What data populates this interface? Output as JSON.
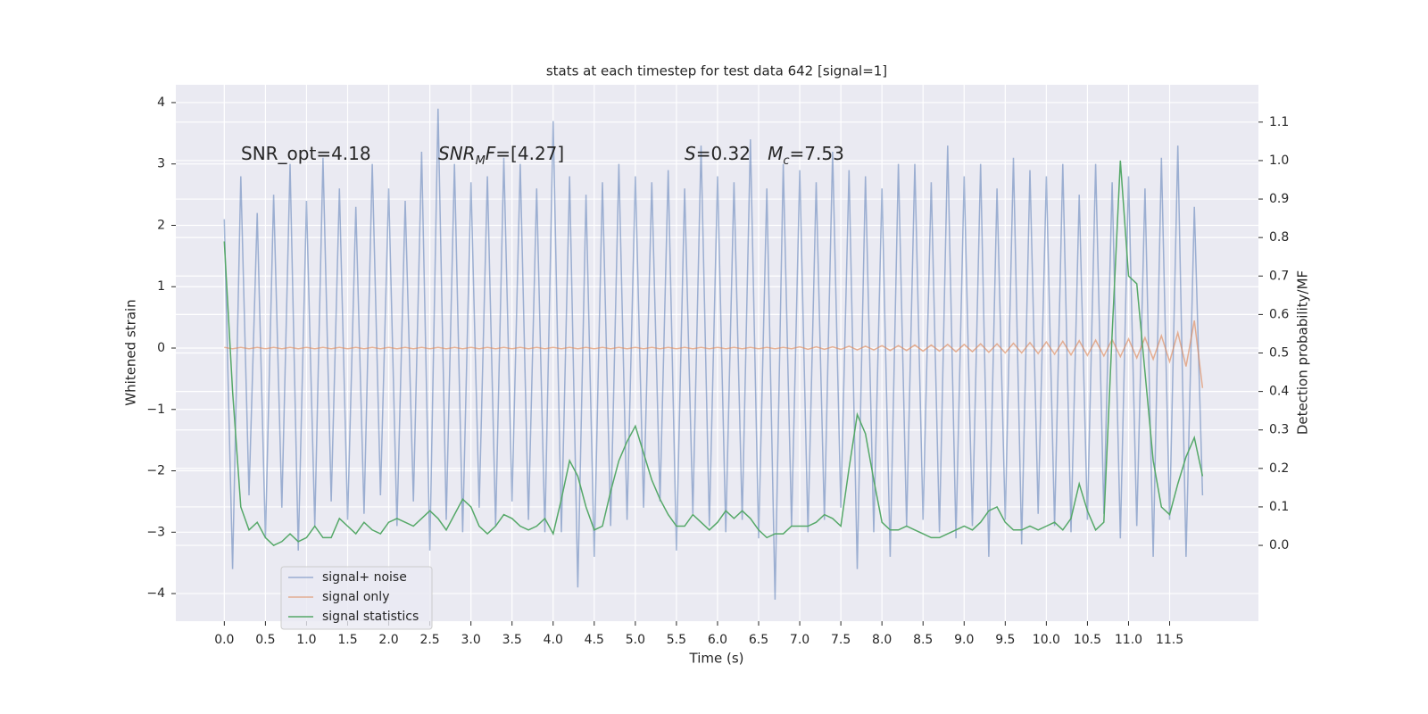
{
  "chart_data": {
    "type": "line",
    "title": "stats at each timestep for test data 642 [signal=1]",
    "xlabel": "Time (s)",
    "ylabel": "Whitened strain",
    "y2label": "Detection probability/MF",
    "annotations": [
      {
        "parts": [
          {
            "text": "SNR_opt=4.18"
          }
        ]
      },
      {
        "parts": [
          {
            "text": "SNR",
            "italic": true
          },
          {
            "text": "M",
            "italic": true,
            "sub": true
          },
          {
            "text": "F",
            "italic": true
          },
          {
            "text": "=[4.27]"
          }
        ]
      },
      {
        "parts": [
          {
            "text": "S",
            "italic": true
          },
          {
            "text": "=0.32   "
          },
          {
            "text": "M",
            "italic": true
          },
          {
            "text": "c",
            "italic": true,
            "sub": true
          },
          {
            "text": "=7.53"
          }
        ]
      }
    ],
    "x": [
      0.0,
      0.1,
      0.2,
      0.3,
      0.4,
      0.5,
      0.6,
      0.7,
      0.8,
      0.9,
      1.0,
      1.1,
      1.2,
      1.3,
      1.4,
      1.5,
      1.6,
      1.7,
      1.8,
      1.9,
      2.0,
      2.1,
      2.2,
      2.3,
      2.4,
      2.5,
      2.6,
      2.7,
      2.8,
      2.9,
      3.0,
      3.1,
      3.2,
      3.3,
      3.4,
      3.5,
      3.6,
      3.7,
      3.8,
      3.9,
      4.0,
      4.1,
      4.2,
      4.3,
      4.4,
      4.5,
      4.6,
      4.7,
      4.8,
      4.9,
      5.0,
      5.1,
      5.2,
      5.3,
      5.4,
      5.5,
      5.6,
      5.7,
      5.8,
      5.9,
      6.0,
      6.1,
      6.2,
      6.3,
      6.4,
      6.5,
      6.6,
      6.7,
      6.8,
      6.9,
      7.0,
      7.1,
      7.2,
      7.3,
      7.4,
      7.5,
      7.6,
      7.7,
      7.8,
      7.9,
      8.0,
      8.1,
      8.2,
      8.3,
      8.4,
      8.5,
      8.6,
      8.7,
      8.8,
      8.9,
      9.0,
      9.1,
      9.2,
      9.3,
      9.4,
      9.5,
      9.6,
      9.7,
      9.8,
      9.9,
      10.0,
      10.1,
      10.2,
      10.3,
      10.4,
      10.5,
      10.6,
      10.7,
      10.8,
      10.9,
      11.0,
      11.1,
      11.2,
      11.3,
      11.4,
      11.5,
      11.6,
      11.7,
      11.8,
      11.9
    ],
    "series": [
      {
        "name": "signal+ noise",
        "color": "#4c72b0",
        "opacity": 0.5,
        "axis": "y",
        "values": [
          2.1,
          -3.6,
          2.8,
          -2.4,
          2.2,
          -3.1,
          2.5,
          -2.6,
          3.0,
          -3.3,
          2.4,
          -2.9,
          3.1,
          -2.5,
          2.6,
          -2.8,
          2.3,
          -2.7,
          3.0,
          -2.4,
          2.6,
          -2.9,
          2.4,
          -2.5,
          3.2,
          -3.3,
          3.9,
          -2.8,
          3.0,
          -3.0,
          2.7,
          -2.6,
          2.8,
          -2.9,
          3.1,
          -2.5,
          3.0,
          -2.8,
          2.6,
          -3.0,
          3.7,
          -3.0,
          2.8,
          -3.9,
          2.5,
          -3.4,
          2.7,
          -2.9,
          3.0,
          -2.8,
          2.8,
          -2.6,
          2.7,
          -2.5,
          2.9,
          -3.3,
          2.6,
          -2.7,
          3.3,
          -2.9,
          2.8,
          -3.0,
          2.7,
          -2.8,
          3.4,
          -3.1,
          2.6,
          -4.1,
          3.0,
          -2.9,
          2.9,
          -3.0,
          2.7,
          -2.8,
          3.2,
          -2.6,
          2.9,
          -3.6,
          2.8,
          -3.0,
          2.6,
          -3.4,
          3.0,
          -2.9,
          3.0,
          -2.8,
          2.7,
          -3.0,
          3.3,
          -3.1,
          2.8,
          -2.9,
          3.0,
          -3.4,
          2.6,
          -2.8,
          3.1,
          -3.2,
          2.9,
          -2.7,
          2.8,
          -2.9,
          3.0,
          -3.0,
          2.5,
          -2.8,
          3.0,
          -2.7,
          2.7,
          -3.1,
          2.8,
          -2.9,
          2.6,
          -3.4,
          3.1,
          -2.8,
          3.3,
          -3.4,
          2.3,
          -2.4
        ]
      },
      {
        "name": "signal only",
        "color": "#dd8452",
        "opacity": 0.6,
        "axis": "y",
        "values": [
          0.01,
          -0.01,
          0.01,
          -0.01,
          0.01,
          -0.01,
          0.01,
          -0.01,
          0.01,
          -0.01,
          0.01,
          -0.01,
          0.01,
          -0.01,
          0.01,
          -0.01,
          0.01,
          -0.01,
          0.01,
          -0.01,
          0.01,
          -0.01,
          0.01,
          -0.01,
          0.01,
          -0.01,
          0.01,
          -0.01,
          0.01,
          -0.01,
          0.01,
          -0.01,
          0.01,
          -0.01,
          0.01,
          -0.01,
          0.01,
          -0.01,
          0.01,
          -0.01,
          0.01,
          -0.01,
          0.01,
          -0.01,
          0.01,
          -0.01,
          0.01,
          -0.01,
          0.01,
          -0.01,
          0.01,
          -0.01,
          0.01,
          -0.01,
          0.01,
          -0.01,
          0.01,
          -0.01,
          0.01,
          -0.01,
          0.01,
          -0.01,
          0.01,
          -0.01,
          0.01,
          -0.01,
          0.01,
          -0.01,
          0.01,
          -0.01,
          0.02,
          -0.02,
          0.02,
          -0.02,
          0.02,
          -0.02,
          0.03,
          -0.03,
          0.03,
          -0.03,
          0.04,
          -0.04,
          0.04,
          -0.04,
          0.05,
          -0.05,
          0.05,
          -0.05,
          0.06,
          -0.06,
          0.06,
          -0.06,
          0.07,
          -0.07,
          0.07,
          -0.08,
          0.08,
          -0.08,
          0.09,
          -0.09,
          0.1,
          -0.1,
          0.11,
          -0.11,
          0.12,
          -0.12,
          0.13,
          -0.13,
          0.14,
          -0.14,
          0.15,
          -0.16,
          0.17,
          -0.18,
          0.2,
          -0.22,
          0.25,
          -0.3,
          0.45,
          -0.65
        ]
      },
      {
        "name": "signal statistics",
        "color": "#55a868",
        "opacity": 1,
        "axis": "y2",
        "values": [
          0.79,
          0.4,
          0.1,
          0.04,
          0.06,
          0.02,
          0.0,
          0.01,
          0.03,
          0.01,
          0.02,
          0.05,
          0.02,
          0.02,
          0.07,
          0.05,
          0.03,
          0.06,
          0.04,
          0.03,
          0.06,
          0.07,
          0.06,
          0.05,
          0.07,
          0.09,
          0.07,
          0.04,
          0.08,
          0.12,
          0.1,
          0.05,
          0.03,
          0.05,
          0.08,
          0.07,
          0.05,
          0.04,
          0.05,
          0.07,
          0.03,
          0.12,
          0.22,
          0.18,
          0.1,
          0.04,
          0.05,
          0.14,
          0.22,
          0.27,
          0.31,
          0.24,
          0.17,
          0.12,
          0.08,
          0.05,
          0.05,
          0.08,
          0.06,
          0.04,
          0.06,
          0.09,
          0.07,
          0.09,
          0.07,
          0.04,
          0.02,
          0.03,
          0.03,
          0.05,
          0.05,
          0.05,
          0.06,
          0.08,
          0.07,
          0.05,
          0.2,
          0.34,
          0.29,
          0.17,
          0.06,
          0.04,
          0.04,
          0.05,
          0.04,
          0.03,
          0.02,
          0.02,
          0.03,
          0.04,
          0.05,
          0.04,
          0.06,
          0.09,
          0.1,
          0.06,
          0.04,
          0.04,
          0.05,
          0.04,
          0.05,
          0.06,
          0.04,
          0.07,
          0.16,
          0.09,
          0.04,
          0.06,
          0.55,
          1.0,
          0.7,
          0.68,
          0.45,
          0.22,
          0.1,
          0.08,
          0.16,
          0.23,
          0.28,
          0.18
        ]
      }
    ],
    "xlim": [
      -0.59,
      12.58
    ],
    "xticks": [
      {
        "value": 0,
        "label": "0.0"
      },
      0.5,
      {
        "value": 1,
        "label": "1.0"
      },
      1.5,
      {
        "value": 2,
        "label": "2.0"
      },
      2.5,
      {
        "value": 3,
        "label": "3.0"
      },
      3.5,
      {
        "value": 4,
        "label": "4.0"
      },
      4.5,
      {
        "value": 5,
        "label": "5.0"
      },
      5.5,
      {
        "value": 6,
        "label": "6.0"
      },
      6.5,
      {
        "value": 7,
        "label": "7.0"
      },
      7.5,
      {
        "value": 8,
        "label": "8.0"
      },
      8.5,
      {
        "value": 9,
        "label": "9.0"
      },
      9.5,
      {
        "value": 10,
        "label": "10.0"
      },
      10.5,
      {
        "value": 11,
        "label": "11.0"
      },
      11.5
    ],
    "ylim": [
      -4.45,
      4.29
    ],
    "yticks": [
      {
        "value": -4,
        "label": "−4"
      },
      {
        "value": -3,
        "label": "−3"
      },
      {
        "value": -2,
        "label": "−2"
      },
      {
        "value": -1,
        "label": "−1"
      },
      0,
      1,
      2,
      3,
      4
    ],
    "y2lim": [
      -0.197,
      1.197
    ],
    "y2ticks": [
      {
        "value": 0,
        "label": "0.0"
      },
      0.1,
      0.2,
      0.3,
      0.4,
      0.5,
      0.6,
      0.7,
      0.8,
      0.9,
      {
        "value": 1,
        "label": "1.0"
      },
      1.1
    ],
    "grid": true,
    "legend": "lower left"
  }
}
